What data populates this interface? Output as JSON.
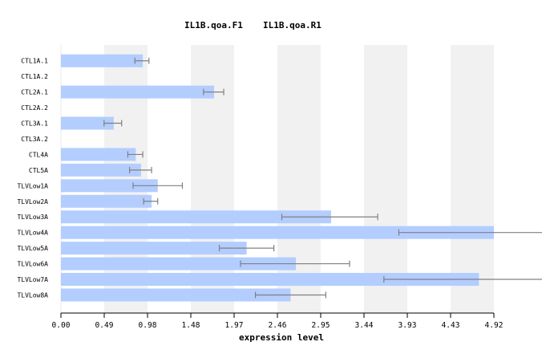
{
  "chart_data": {
    "type": "bar",
    "orientation": "horizontal",
    "title_parts": [
      "IL1B.qoa.F1",
      "IL1B.qoa.R1"
    ],
    "xlabel": "expression level",
    "ylabel": "",
    "xlim": [
      0,
      4.92
    ],
    "xticks": [
      "0.00",
      "0.49",
      "0.98",
      "1.48",
      "1.97",
      "2.46",
      "2.95",
      "3.44",
      "3.93",
      "4.43",
      "4.92"
    ],
    "grid": "alternating vertical bands",
    "categories": [
      "CTL1A.1",
      "CTL1A.2",
      "CTL2A.1",
      "CTL2A.2",
      "CTL3A.1",
      "CTL3A.2",
      "CTL4A",
      "CTL5A",
      "TLVLow1A",
      "TLVLow2A",
      "TLVLow3A",
      "TLVLow4A",
      "TLVLow5A",
      "TLVLow6A",
      "TLVLow7A",
      "TLVLow8A"
    ],
    "values": [
      0.93,
      null,
      1.74,
      null,
      0.6,
      null,
      0.85,
      0.91,
      1.1,
      1.03,
      3.07,
      4.92,
      2.11,
      2.67,
      4.75,
      2.61
    ],
    "error_low": [
      0.84,
      null,
      1.62,
      null,
      0.49,
      null,
      0.76,
      0.78,
      0.82,
      0.94,
      2.51,
      3.84,
      1.8,
      2.04,
      3.67,
      2.21
    ],
    "error_high": [
      1.0,
      null,
      1.85,
      null,
      0.69,
      null,
      0.93,
      1.03,
      1.38,
      1.1,
      3.6,
      5.5,
      2.42,
      3.28,
      5.5,
      3.01
    ],
    "colors": {
      "bar": "#b3cdff",
      "error": "#808080",
      "band": "#f1f1f1",
      "axis": "#000000"
    }
  }
}
